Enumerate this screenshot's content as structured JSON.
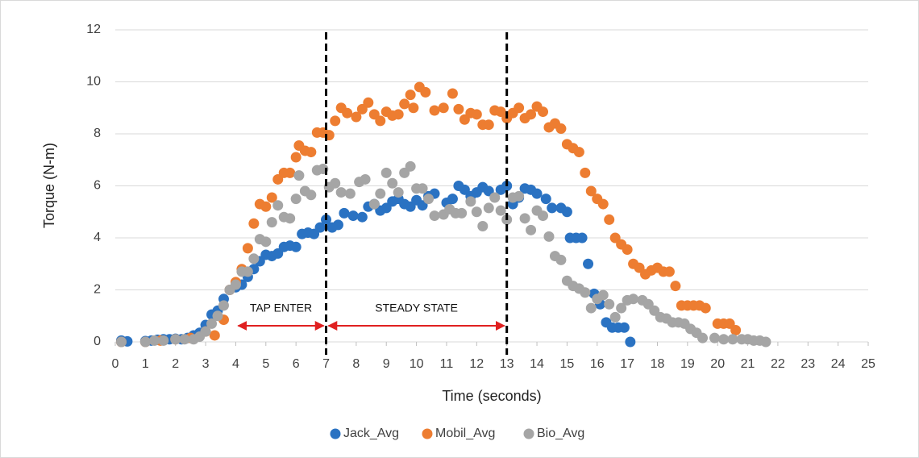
{
  "chart_data": {
    "type": "scatter",
    "x_label": "Time (seconds)",
    "y_label": "Torque (N-m)",
    "xlim": [
      0,
      25
    ],
    "ylim": [
      0,
      12
    ],
    "xticks": [
      0,
      1,
      2,
      3,
      4,
      5,
      6,
      7,
      8,
      9,
      10,
      11,
      12,
      13,
      14,
      15,
      16,
      17,
      18,
      19,
      20,
      21,
      22,
      23,
      24,
      25
    ],
    "yticks": [
      0,
      2,
      4,
      6,
      8,
      10,
      12
    ],
    "grid": true,
    "legend": "bottom",
    "vlines": [
      7,
      13
    ],
    "annotations": [
      {
        "text": "TAP ENTER",
        "x": [
          4,
          7
        ]
      },
      {
        "text": "STEADY STATE",
        "x": [
          7,
          13
        ]
      }
    ],
    "series": [
      {
        "name": "Jack_Avg",
        "color": "#2a72c2",
        "x": [
          0.2,
          0.4,
          1,
          1.2,
          1.4,
          1.6,
          1.8,
          2,
          2.2,
          2.4,
          2.6,
          2.8,
          3,
          3.2,
          3.4,
          3.6,
          4,
          4.2,
          4.4,
          4.6,
          4.8,
          5,
          5.2,
          5.4,
          5.6,
          5.8,
          6,
          6.2,
          6.4,
          6.6,
          6.8,
          7,
          7.2,
          7.4,
          7.6,
          7.9,
          8.2,
          8.4,
          8.6,
          8.8,
          9,
          9.2,
          9.4,
          9.6,
          9.8,
          10,
          10.2,
          10.4,
          10.6,
          11,
          11.2,
          11.4,
          11.6,
          11.8,
          12,
          12.2,
          12.4,
          12.8,
          13,
          13.2,
          13.4,
          13.6,
          13.8,
          14,
          14.3,
          14.5,
          14.8,
          15,
          15.1,
          15.3,
          15.5,
          15.7,
          15.9,
          16.1,
          16.3,
          16.5,
          16.7,
          16.9,
          17.1
        ],
        "values": [
          0.05,
          0.02,
          0.03,
          0.05,
          0.08,
          0.1,
          0.1,
          0.12,
          0.1,
          0.15,
          0.25,
          0.35,
          0.65,
          1.05,
          1.2,
          1.65,
          2.1,
          2.2,
          2.5,
          2.8,
          3.1,
          3.35,
          3.3,
          3.4,
          3.65,
          3.7,
          3.65,
          4.15,
          4.2,
          4.15,
          4.4,
          4.7,
          4.4,
          4.5,
          4.95,
          4.85,
          4.8,
          5.2,
          5.3,
          5.05,
          5.15,
          5.4,
          5.5,
          5.3,
          5.2,
          5.45,
          5.25,
          5.6,
          5.7,
          5.35,
          5.5,
          6.0,
          5.85,
          5.6,
          5.75,
          5.95,
          5.8,
          5.85,
          6.0,
          5.3,
          5.55,
          5.9,
          5.85,
          5.7,
          5.5,
          5.15,
          5.15,
          5.0,
          4.0,
          4.0,
          4.0,
          3.0,
          1.85,
          1.45,
          0.75,
          0.55,
          0.55,
          0.55,
          0.0
        ]
      },
      {
        "name": "Mobil_Avg",
        "color": "#ed7d31",
        "x": [
          0.2,
          1,
          1.5,
          2,
          2.5,
          3,
          3.3,
          3.6,
          3.8,
          4,
          4.2,
          4.4,
          4.6,
          4.8,
          5,
          5.2,
          5.4,
          5.6,
          5.8,
          6,
          6.1,
          6.3,
          6.5,
          6.7,
          6.9,
          7.1,
          7.3,
          7.5,
          7.7,
          8,
          8.2,
          8.4,
          8.6,
          8.8,
          9,
          9.2,
          9.4,
          9.6,
          9.8,
          9.9,
          10.1,
          10.3,
          10.6,
          10.9,
          11.2,
          11.4,
          11.6,
          11.8,
          12,
          12.2,
          12.4,
          12.6,
          12.8,
          13,
          13.2,
          13.4,
          13.6,
          13.8,
          14,
          14.2,
          14.4,
          14.6,
          14.8,
          15,
          15.2,
          15.4,
          15.6,
          15.8,
          16,
          16.2,
          16.4,
          16.6,
          16.8,
          17,
          17.2,
          17.4,
          17.6,
          17.8,
          18,
          18.2,
          18.4,
          18.6,
          18.8,
          19,
          19.2,
          19.4,
          19.6,
          20,
          20.2,
          20.4,
          20.6
        ],
        "values": [
          0.0,
          0.0,
          0.05,
          0.1,
          0.15,
          0.4,
          0.25,
          0.85,
          2.0,
          2.3,
          2.8,
          3.6,
          4.55,
          5.3,
          5.2,
          5.55,
          6.25,
          6.5,
          6.5,
          7.1,
          7.55,
          7.35,
          7.3,
          8.05,
          8.05,
          7.95,
          8.5,
          9.0,
          8.8,
          8.65,
          8.95,
          9.2,
          8.75,
          8.5,
          8.85,
          8.7,
          8.75,
          9.15,
          9.5,
          9.0,
          9.8,
          9.6,
          8.9,
          9.0,
          9.55,
          8.95,
          8.55,
          8.8,
          8.75,
          8.35,
          8.35,
          8.9,
          8.85,
          8.6,
          8.8,
          9.0,
          8.6,
          8.75,
          9.05,
          8.85,
          8.25,
          8.4,
          8.2,
          7.6,
          7.45,
          7.3,
          6.5,
          5.8,
          5.5,
          5.3,
          4.7,
          4.0,
          3.75,
          3.55,
          3.0,
          2.85,
          2.6,
          2.75,
          2.85,
          2.7,
          2.7,
          2.15,
          1.4,
          1.4,
          1.4,
          1.4,
          1.3,
          0.7,
          0.7,
          0.7,
          0.45
        ]
      },
      {
        "name": "Bio_Avg",
        "color": "#a5a5a5",
        "x": [
          0.2,
          1,
          1.3,
          1.6,
          2,
          2.3,
          2.6,
          2.8,
          3,
          3.2,
          3.4,
          3.6,
          3.8,
          4,
          4.2,
          4.4,
          4.6,
          4.8,
          5,
          5.2,
          5.4,
          5.6,
          5.8,
          6,
          6.1,
          6.3,
          6.5,
          6.7,
          6.9,
          7.1,
          7.3,
          7.5,
          7.8,
          8.1,
          8.3,
          8.6,
          8.8,
          9,
          9.2,
          9.4,
          9.6,
          9.8,
          10,
          10.2,
          10.4,
          10.6,
          10.9,
          11.1,
          11.3,
          11.5,
          11.8,
          12,
          12.2,
          12.4,
          12.6,
          12.8,
          13,
          13.2,
          13.4,
          13.6,
          13.8,
          14,
          14.2,
          14.4,
          14.6,
          14.8,
          15,
          15.2,
          15.4,
          15.6,
          15.8,
          16,
          16.2,
          16.4,
          16.6,
          16.8,
          17,
          17.2,
          17.5,
          17.7,
          17.9,
          18.1,
          18.3,
          18.5,
          18.7,
          18.9,
          19.1,
          19.3,
          19.5,
          19.9,
          20.2,
          20.5,
          20.8,
          21,
          21.2,
          21.4,
          21.6
        ],
        "values": [
          0.0,
          0.0,
          0.05,
          0.05,
          0.1,
          0.1,
          0.1,
          0.2,
          0.4,
          0.7,
          1.0,
          1.4,
          2.0,
          2.2,
          2.7,
          2.7,
          3.2,
          3.95,
          3.85,
          4.6,
          5.25,
          4.8,
          4.75,
          5.5,
          6.4,
          5.8,
          5.65,
          6.6,
          6.65,
          5.95,
          6.1,
          5.75,
          5.7,
          6.15,
          6.25,
          5.3,
          5.7,
          6.5,
          6.1,
          5.75,
          6.5,
          6.75,
          5.9,
          5.9,
          5.5,
          4.85,
          4.9,
          5.1,
          4.95,
          4.95,
          5.4,
          5.0,
          4.45,
          5.15,
          5.55,
          5.05,
          4.7,
          5.55,
          5.6,
          4.75,
          4.3,
          5.05,
          4.85,
          4.05,
          3.3,
          3.15,
          2.35,
          2.15,
          2.05,
          1.9,
          1.3,
          1.65,
          1.8,
          1.45,
          0.95,
          1.3,
          1.6,
          1.65,
          1.6,
          1.45,
          1.2,
          0.95,
          0.9,
          0.75,
          0.75,
          0.7,
          0.5,
          0.35,
          0.15,
          0.15,
          0.1,
          0.1,
          0.1,
          0.1,
          0.05,
          0.05,
          0.0
        ]
      }
    ]
  }
}
